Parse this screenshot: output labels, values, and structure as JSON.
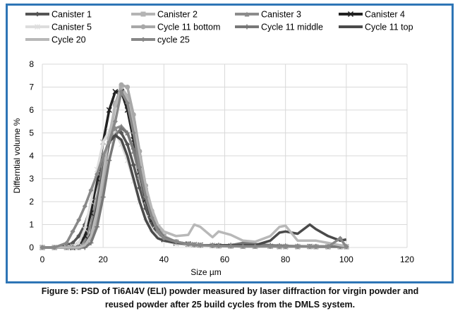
{
  "chart_data": {
    "type": "line",
    "title": "",
    "xlabel": "Size µm",
    "ylabel": "Differntial volume %",
    "xlim": [
      0,
      120
    ],
    "ylim": [
      0,
      8
    ],
    "xticks": [
      "0",
      "20",
      "40",
      "60",
      "80",
      "100",
      "120"
    ],
    "yticks": [
      "0",
      "1",
      "2",
      "3",
      "4",
      "5",
      "6",
      "7",
      "8"
    ],
    "grid": true,
    "legend_position": "top",
    "x": [
      0,
      4,
      8,
      10,
      12,
      14,
      16,
      18,
      20,
      22,
      24,
      26,
      28,
      30,
      32,
      34,
      36,
      38,
      40,
      44,
      48,
      50,
      52,
      56,
      58,
      62,
      66,
      70,
      75,
      78,
      80,
      84,
      88,
      90,
      94,
      98,
      100
    ],
    "series": [
      {
        "name": "Canister 1",
        "color": "#555555",
        "marker": "diamond",
        "values": [
          0,
          0,
          0.1,
          0.2,
          0.5,
          1.0,
          1.8,
          2.8,
          3.9,
          4.7,
          5.1,
          5.0,
          4.5,
          3.6,
          2.6,
          1.7,
          1.0,
          0.6,
          0.4,
          0.25,
          0.15,
          0.12,
          0.1,
          0.08,
          0.07,
          0.06,
          0.05,
          0.05,
          0.05,
          0.04,
          0.04,
          0.04,
          0.04,
          0.03,
          0.03,
          0.03,
          0.03
        ]
      },
      {
        "name": "Canister 2",
        "color": "#b4b4b4",
        "marker": "square",
        "values": [
          0,
          0,
          0,
          0,
          0,
          0.1,
          0.5,
          1.5,
          3.0,
          4.8,
          6.3,
          7.0,
          6.6,
          5.4,
          3.9,
          2.5,
          1.5,
          0.9,
          0.5,
          0.25,
          0.15,
          0.12,
          0.1,
          0.08,
          0.07,
          0.06,
          0.05,
          0.05,
          0.05,
          0.04,
          0.04,
          0.04,
          0.04,
          0.03,
          0.03,
          0.03,
          0.03
        ]
      },
      {
        "name": "Canister 3",
        "color": "#8c8c8c",
        "marker": "triangle",
        "values": [
          0,
          0,
          0,
          0,
          0.05,
          0.3,
          1.0,
          2.2,
          3.6,
          4.7,
          5.2,
          5.3,
          5.0,
          4.2,
          3.1,
          2.0,
          1.2,
          0.7,
          0.4,
          0.25,
          0.15,
          0.12,
          0.1,
          0.08,
          0.07,
          0.06,
          0.05,
          0.05,
          0.05,
          0.04,
          0.04,
          0.04,
          0.04,
          0.03,
          0.03,
          0.03,
          0.03
        ]
      },
      {
        "name": "Canister 4",
        "color": "#222222",
        "marker": "x",
        "values": [
          0,
          0,
          0,
          0,
          0.1,
          0.5,
          1.5,
          3.0,
          4.6,
          6.0,
          6.8,
          6.8,
          6.0,
          4.7,
          3.3,
          2.1,
          1.2,
          0.7,
          0.35,
          0.2,
          0.15,
          0.12,
          0.1,
          0.08,
          0.07,
          0.06,
          0.05,
          0.05,
          0.05,
          0.04,
          0.04,
          0.04,
          0.04,
          0.03,
          0.03,
          0.03,
          0.03
        ]
      },
      {
        "name": "Canister 5",
        "color": "#dddddd",
        "marker": "star",
        "values": [
          0,
          0,
          0,
          0.05,
          0.2,
          0.8,
          2.0,
          3.4,
          4.6,
          5.1,
          5.0,
          4.5,
          3.8,
          2.9,
          2.0,
          1.3,
          0.8,
          0.5,
          0.3,
          0.15,
          0.1,
          0.1,
          0.08,
          0.07,
          0.06,
          0.05,
          0.05,
          0.05,
          0.04,
          0.04,
          0.04,
          0.04,
          0.03,
          0.03,
          0.03,
          0.03,
          0.03
        ]
      },
      {
        "name": "Cycle 11 bottom",
        "color": "#a8a8a8",
        "marker": "circle",
        "values": [
          0,
          0,
          0,
          0,
          0,
          0.1,
          0.4,
          1.3,
          2.8,
          4.6,
          6.2,
          7.1,
          7.0,
          5.8,
          4.2,
          2.7,
          1.6,
          0.9,
          0.5,
          0.25,
          0.15,
          0.12,
          0.1,
          0.08,
          0.07,
          0.06,
          0.05,
          0.05,
          0.05,
          0.04,
          0.04,
          0.04,
          0.04,
          0.03,
          0.03,
          0.03,
          0.03
        ]
      },
      {
        "name": "Cycle 11 middle",
        "color": "#777777",
        "marker": "plus",
        "values": [
          0,
          0,
          0,
          0,
          0,
          0,
          0.2,
          0.9,
          2.2,
          3.8,
          4.9,
          5.2,
          5.0,
          4.3,
          3.3,
          2.2,
          1.3,
          0.8,
          0.45,
          0.25,
          0.15,
          0.12,
          0.1,
          0.1,
          0.1,
          0.1,
          0.2,
          0.15,
          0.1,
          0.08,
          0.07,
          0.06,
          0.05,
          0.05,
          0.05,
          0.04,
          0.04
        ]
      },
      {
        "name": "Cycle 11 top",
        "color": "#4a4a4a",
        "marker": "none",
        "values": [
          0,
          0,
          0,
          0,
          0,
          0.1,
          0.6,
          1.8,
          3.4,
          4.6,
          4.9,
          4.7,
          4.0,
          3.0,
          2.0,
          1.2,
          0.7,
          0.4,
          0.3,
          0.2,
          0.15,
          0.12,
          0.1,
          0.1,
          0.1,
          0.1,
          0.1,
          0.1,
          0.3,
          0.65,
          0.7,
          0.6,
          1.0,
          0.8,
          0.5,
          0.3,
          0.35
        ]
      },
      {
        "name": "Cycle 20",
        "color": "#b8b8b8",
        "marker": "none",
        "values": [
          0,
          0,
          0,
          0,
          0,
          0.1,
          0.5,
          1.6,
          3.2,
          4.9,
          6.2,
          6.8,
          6.4,
          5.3,
          4.0,
          2.7,
          1.7,
          1.0,
          0.7,
          0.5,
          0.55,
          1.0,
          0.9,
          0.45,
          0.7,
          0.55,
          0.3,
          0.25,
          0.5,
          0.9,
          0.95,
          0.3,
          0.3,
          0.3,
          0.2,
          0.1,
          0.05
        ]
      },
      {
        "name": "cycle 25",
        "color": "#888888",
        "marker": "diamond",
        "values": [
          0,
          0,
          0.2,
          0.7,
          1.2,
          1.8,
          2.5,
          3.2,
          4.0,
          4.6,
          5.5,
          6.8,
          6.3,
          5.0,
          3.5,
          2.2,
          1.3,
          0.7,
          0.4,
          0.25,
          0.15,
          0.12,
          0.1,
          0.08,
          0.07,
          0.06,
          0.05,
          0.05,
          0.05,
          0.04,
          0.04,
          0.04,
          0.04,
          0.03,
          0.03,
          0.4,
          0.03
        ]
      }
    ]
  },
  "caption": {
    "line1": "Figure 5: PSD of Ti6Al4V (ELI) powder measured by laser diffraction for virgin powder and",
    "line2": "reused powder after 25 build cycles from the DMLS system."
  }
}
